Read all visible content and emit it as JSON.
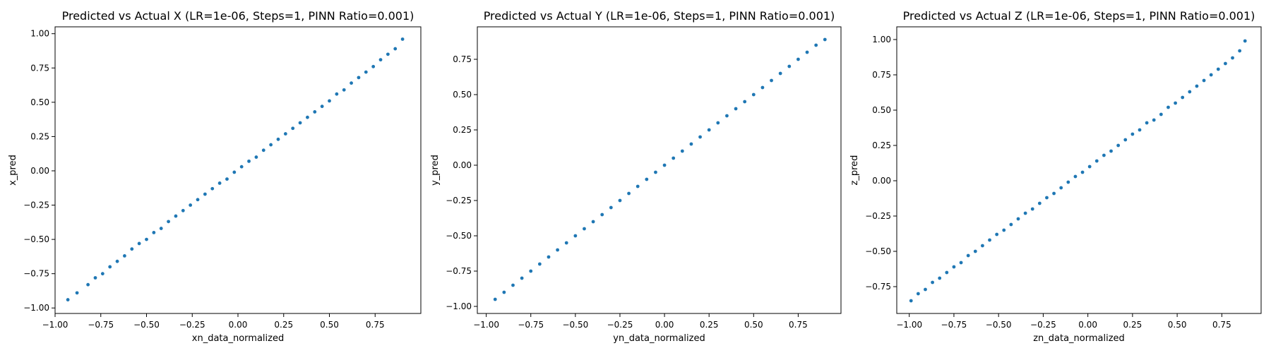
{
  "chart_data": [
    {
      "type": "scatter",
      "title": "Predicted vs Actual X (LR=1e-06, Steps=1, PINN Ratio=0.001)",
      "xlabel": "xn_data_normalized",
      "ylabel": "x_pred",
      "xlim": [
        -1.0,
        1.0
      ],
      "ylim": [
        -1.04,
        1.05
      ],
      "xticks": [
        -1.0,
        -0.75,
        -0.5,
        -0.25,
        0.0,
        0.25,
        0.5,
        0.75
      ],
      "xtick_labels": [
        "−1.00",
        "−0.75",
        "−0.50",
        "−0.25",
        "0.00",
        "0.25",
        "0.50",
        "0.75"
      ],
      "yticks": [
        -1.0,
        -0.75,
        -0.5,
        -0.25,
        0.0,
        0.25,
        0.5,
        0.75,
        1.0
      ],
      "ytick_labels": [
        "−1.00",
        "−0.75",
        "−0.50",
        "−0.25",
        "0.00",
        "0.25",
        "0.50",
        "0.75",
        "1.00"
      ],
      "color": "#1f77b4",
      "grid": false,
      "series": [
        {
          "x": [
            -0.93,
            -0.88,
            -0.82,
            -0.78,
            -0.74,
            -0.7,
            -0.66,
            -0.62,
            -0.58,
            -0.54,
            -0.5,
            -0.46,
            -0.42,
            -0.38,
            -0.34,
            -0.3,
            -0.26,
            -0.22,
            -0.18,
            -0.14,
            -0.1,
            -0.06,
            -0.02,
            0.02,
            0.06,
            0.1,
            0.14,
            0.18,
            0.22,
            0.26,
            0.3,
            0.34,
            0.38,
            0.42,
            0.46,
            0.5,
            0.54,
            0.58,
            0.62,
            0.66,
            0.7,
            0.74,
            0.78,
            0.82,
            0.86,
            0.9
          ],
          "y": [
            -0.94,
            -0.89,
            -0.83,
            -0.78,
            -0.75,
            -0.7,
            -0.66,
            -0.62,
            -0.57,
            -0.53,
            -0.5,
            -0.45,
            -0.42,
            -0.37,
            -0.33,
            -0.29,
            -0.25,
            -0.21,
            -0.17,
            -0.13,
            -0.09,
            -0.06,
            -0.01,
            0.03,
            0.07,
            0.1,
            0.15,
            0.19,
            0.23,
            0.27,
            0.31,
            0.35,
            0.39,
            0.43,
            0.47,
            0.51,
            0.56,
            0.59,
            0.64,
            0.68,
            0.72,
            0.76,
            0.81,
            0.85,
            0.89,
            0.96
          ]
        }
      ]
    },
    {
      "type": "scatter",
      "title": "Predicted vs Actual Y (LR=1e-06, Steps=1, PINN Ratio=0.001)",
      "xlabel": "yn_data_normalized",
      "ylabel": "y_pred",
      "xlim": [
        -1.05,
        0.99
      ],
      "ylim": [
        -1.05,
        0.98
      ],
      "xticks": [
        -1.0,
        -0.75,
        -0.5,
        -0.25,
        0.0,
        0.25,
        0.5,
        0.75
      ],
      "xtick_labels": [
        "−1.00",
        "−0.75",
        "−0.50",
        "−0.25",
        "0.00",
        "0.25",
        "0.50",
        "0.75"
      ],
      "yticks": [
        -1.0,
        -0.75,
        -0.5,
        -0.25,
        0.0,
        0.25,
        0.5,
        0.75
      ],
      "ytick_labels": [
        "−1.00",
        "−0.75",
        "−0.50",
        "−0.25",
        "0.00",
        "0.25",
        "0.50",
        "0.75"
      ],
      "color": "#1f77b4",
      "grid": false,
      "series": [
        {
          "x": [
            -0.95,
            -0.9,
            -0.85,
            -0.8,
            -0.75,
            -0.7,
            -0.65,
            -0.6,
            -0.55,
            -0.5,
            -0.45,
            -0.4,
            -0.35,
            -0.3,
            -0.25,
            -0.2,
            -0.15,
            -0.1,
            -0.05,
            0.0,
            0.05,
            0.1,
            0.15,
            0.2,
            0.25,
            0.3,
            0.35,
            0.4,
            0.45,
            0.5,
            0.55,
            0.6,
            0.65,
            0.7,
            0.75,
            0.8,
            0.85,
            0.9
          ],
          "y": [
            -0.95,
            -0.9,
            -0.85,
            -0.8,
            -0.75,
            -0.7,
            -0.65,
            -0.6,
            -0.55,
            -0.5,
            -0.45,
            -0.4,
            -0.35,
            -0.3,
            -0.25,
            -0.2,
            -0.15,
            -0.1,
            -0.05,
            0.0,
            0.05,
            0.1,
            0.15,
            0.2,
            0.25,
            0.3,
            0.35,
            0.4,
            0.45,
            0.5,
            0.55,
            0.6,
            0.65,
            0.7,
            0.75,
            0.8,
            0.85,
            0.89
          ]
        }
      ]
    },
    {
      "type": "scatter",
      "title": "Predicted vs Actual Z (LR=1e-06, Steps=1, PINN Ratio=0.001)",
      "xlabel": "zn_data_normalized",
      "ylabel": "z_pred",
      "xlim": [
        -1.07,
        0.97
      ],
      "ylim": [
        -0.94,
        1.09
      ],
      "xticks": [
        -1.0,
        -0.75,
        -0.5,
        -0.25,
        0.0,
        0.25,
        0.5,
        0.75
      ],
      "xtick_labels": [
        "−1.00",
        "−0.75",
        "−0.50",
        "−0.25",
        "0.00",
        "0.25",
        "0.50",
        "0.75"
      ],
      "yticks": [
        -0.75,
        -0.5,
        -0.25,
        0.0,
        0.25,
        0.5,
        0.75,
        1.0
      ],
      "ytick_labels": [
        "−0.75",
        "−0.50",
        "−0.25",
        "0.00",
        "0.25",
        "0.50",
        "0.75",
        "1.00"
      ],
      "color": "#1f77b4",
      "grid": false,
      "series": [
        {
          "x": [
            -0.99,
            -0.95,
            -0.91,
            -0.87,
            -0.83,
            -0.79,
            -0.75,
            -0.71,
            -0.67,
            -0.63,
            -0.59,
            -0.55,
            -0.51,
            -0.47,
            -0.43,
            -0.39,
            -0.35,
            -0.31,
            -0.27,
            -0.23,
            -0.19,
            -0.15,
            -0.11,
            -0.07,
            -0.03,
            0.01,
            0.05,
            0.09,
            0.13,
            0.17,
            0.21,
            0.25,
            0.29,
            0.33,
            0.37,
            0.41,
            0.45,
            0.49,
            0.53,
            0.57,
            0.61,
            0.65,
            0.69,
            0.73,
            0.77,
            0.81,
            0.85,
            0.88
          ],
          "y": [
            -0.85,
            -0.8,
            -0.77,
            -0.72,
            -0.69,
            -0.65,
            -0.61,
            -0.58,
            -0.53,
            -0.5,
            -0.46,
            -0.42,
            -0.38,
            -0.35,
            -0.31,
            -0.27,
            -0.23,
            -0.2,
            -0.16,
            -0.12,
            -0.09,
            -0.05,
            -0.01,
            0.03,
            0.06,
            0.1,
            0.14,
            0.18,
            0.21,
            0.25,
            0.29,
            0.33,
            0.36,
            0.41,
            0.43,
            0.47,
            0.52,
            0.55,
            0.59,
            0.63,
            0.67,
            0.71,
            0.75,
            0.79,
            0.83,
            0.87,
            0.92,
            0.99
          ]
        }
      ]
    }
  ]
}
